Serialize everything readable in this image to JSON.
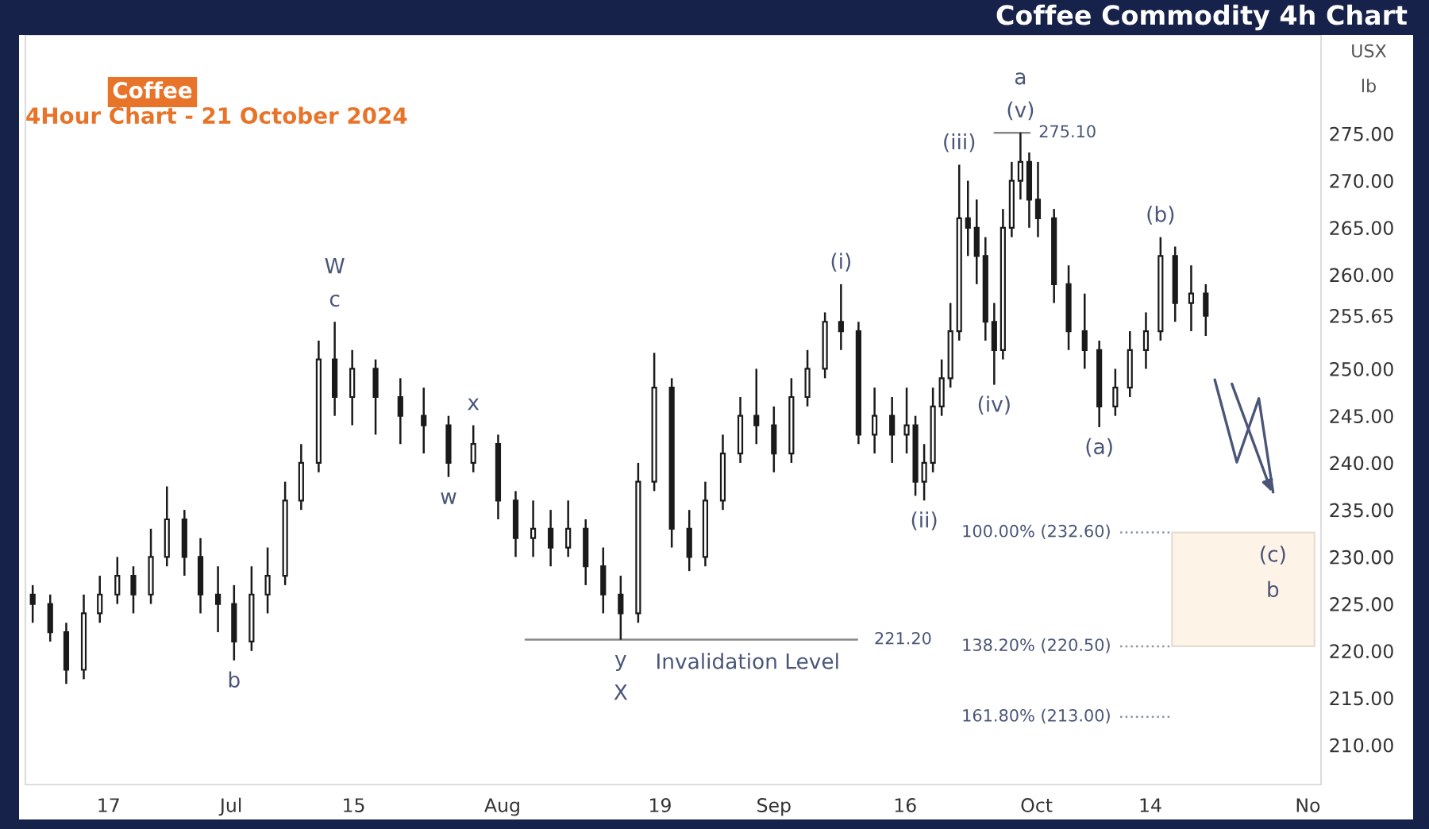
{
  "chart_data": {
    "type": "candlestick",
    "title": "Coffee Commodity 4h Chart",
    "subtitle": "4Hour Chart - 21 October 2024",
    "x": [
      "2024-06-08T08:00",
      "2024-06-10T08:00",
      "2024-06-12T04:00",
      "2024-06-14T04:00",
      "2024-06-16T00:00",
      "2024-06-18T00:00",
      "2024-06-19T20:00",
      "2024-06-21T20:00",
      "2024-06-23T16:00",
      "2024-06-25T16:00",
      "2024-06-27T12:00",
      "2024-06-29T12:00",
      "2024-07-01T08:00",
      "2024-07-03T08:00",
      "2024-07-05T04:00",
      "2024-07-07T04:00",
      "2024-07-09T00:00",
      "2024-07-11T00:00",
      "2024-07-12T20:00",
      "2024-07-14T20:00",
      "2024-07-17T12:00",
      "2024-07-20T08:00",
      "2024-07-23T00:00",
      "2024-07-25T20:00",
      "2024-07-28T16:00",
      "2024-07-31T12:00",
      "2024-08-02T12:00",
      "2024-08-04T12:00",
      "2024-08-06T12:00",
      "2024-08-08T12:00",
      "2024-08-10T12:00",
      "2024-08-12T12:00",
      "2024-08-14T12:00",
      "2024-08-16T12:00",
      "2024-08-18T08:00",
      "2024-08-20T08:00",
      "2024-08-22T08:00",
      "2024-08-24T04:00",
      "2024-08-26T04:00",
      "2024-08-28T04:00",
      "2024-08-30T00:00",
      "2024-09-01T00:00",
      "2024-09-03T00:00",
      "2024-09-04T20:00",
      "2024-09-06T20:00",
      "2024-09-08T16:00",
      "2024-09-10T16:00",
      "2024-09-12T12:00",
      "2024-09-14T12:00",
      "2024-09-16T04:00",
      "2024-09-17T04:00",
      "2024-09-18T04:00",
      "2024-09-19T04:00",
      "2024-09-20T04:00",
      "2024-09-21T04:00",
      "2024-09-22T04:00",
      "2024-09-23T04:00",
      "2024-09-24T04:00",
      "2024-09-25T04:00",
      "2024-09-26T04:00",
      "2024-09-27T04:00",
      "2024-09-28T04:00",
      "2024-09-29T04:00",
      "2024-09-30T04:00",
      "2024-10-01T04:00",
      "2024-10-03T00:00",
      "2024-10-04T16:00",
      "2024-10-06T12:00",
      "2024-10-08T04:00",
      "2024-10-10T00:00",
      "2024-10-11T16:00",
      "2024-10-13T12:00",
      "2024-10-15T04:00",
      "2024-10-16T20:00",
      "2024-10-18T16:00",
      "2024-10-20T08:00"
    ],
    "ohlc": [
      [
        226,
        227,
        223,
        225
      ],
      [
        225,
        226,
        221,
        222
      ],
      [
        222,
        223,
        216.5,
        218
      ],
      [
        218,
        226,
        217,
        224
      ],
      [
        224,
        228,
        223,
        226
      ],
      [
        226,
        230,
        225,
        228
      ],
      [
        228,
        229,
        224,
        226
      ],
      [
        226,
        233,
        225,
        230
      ],
      [
        230,
        237.5,
        229,
        234
      ],
      [
        234,
        235,
        228,
        230
      ],
      [
        230,
        232,
        224,
        226
      ],
      [
        226,
        229,
        222,
        225
      ],
      [
        225,
        227,
        219,
        221
      ],
      [
        221,
        229,
        220,
        226
      ],
      [
        226,
        231,
        224,
        228
      ],
      [
        228,
        238,
        227,
        236
      ],
      [
        236,
        242,
        235,
        240
      ],
      [
        240,
        253,
        239,
        251
      ],
      [
        251,
        255,
        245,
        247
      ],
      [
        247,
        252,
        244,
        250
      ],
      [
        250,
        251,
        243,
        247
      ],
      [
        247,
        249,
        242,
        245
      ],
      [
        245,
        248,
        241,
        244
      ],
      [
        244,
        245,
        238.5,
        240
      ],
      [
        240,
        244,
        239,
        242
      ],
      [
        242,
        243,
        234,
        236
      ],
      [
        236,
        237,
        230,
        232
      ],
      [
        232,
        236,
        230,
        233
      ],
      [
        233,
        235,
        229,
        231
      ],
      [
        231,
        236,
        230,
        233
      ],
      [
        233,
        234,
        227,
        229
      ],
      [
        229,
        231,
        224,
        226
      ],
      [
        226,
        228,
        221.2,
        224
      ],
      [
        224,
        240,
        223,
        238
      ],
      [
        238,
        251.7,
        237,
        248
      ],
      [
        248,
        249,
        231,
        233
      ],
      [
        233,
        235,
        228.5,
        230
      ],
      [
        230,
        238,
        229,
        236
      ],
      [
        236,
        243,
        235,
        241
      ],
      [
        241,
        247,
        240,
        245
      ],
      [
        245,
        250,
        242,
        244
      ],
      [
        244,
        246,
        239,
        241
      ],
      [
        241,
        249,
        240,
        247
      ],
      [
        247,
        252,
        246,
        250
      ],
      [
        250,
        256,
        249,
        255
      ],
      [
        255,
        259,
        252,
        254
      ],
      [
        254,
        255,
        242,
        243
      ],
      [
        243,
        248,
        241,
        245
      ],
      [
        245,
        247,
        240,
        243
      ],
      [
        243,
        248,
        241,
        244
      ],
      [
        244,
        245,
        236.5,
        238
      ],
      [
        238,
        242,
        236,
        240
      ],
      [
        240,
        248,
        239,
        246
      ],
      [
        246,
        251,
        245,
        249
      ],
      [
        249,
        257,
        248,
        254
      ],
      [
        254,
        271.7,
        253,
        266
      ],
      [
        266,
        270,
        262,
        265
      ],
      [
        265,
        268,
        259,
        262
      ],
      [
        262,
        264,
        253,
        255
      ],
      [
        255,
        257,
        248.3,
        252
      ],
      [
        252,
        267,
        251,
        265
      ],
      [
        265,
        272,
        264,
        270
      ],
      [
        270,
        275.1,
        268,
        272
      ],
      [
        272,
        273,
        265,
        268
      ],
      [
        268,
        272,
        264,
        266
      ],
      [
        266,
        267,
        257,
        259
      ],
      [
        259,
        261,
        252,
        254
      ],
      [
        254,
        258,
        250,
        252
      ],
      [
        252,
        253,
        243.8,
        246
      ],
      [
        246,
        250,
        245,
        248
      ],
      [
        248,
        254,
        247,
        252
      ],
      [
        252,
        256,
        250,
        254
      ],
      [
        254,
        264,
        253,
        262
      ],
      [
        262,
        263,
        255,
        257
      ],
      [
        257,
        261,
        254,
        258
      ],
      [
        258,
        259,
        253.5,
        255.65
      ]
    ],
    "color": "#1a1a1a",
    "xlim": [
      "2024-06-07T12:00",
      "2024-11-02T12:00"
    ],
    "xticks": [
      {
        "value": "2024-06-17",
        "label": "17"
      },
      {
        "value": "2024-07-01",
        "label": "Jul"
      },
      {
        "value": "2024-07-15",
        "label": "15"
      },
      {
        "value": "2024-08-01",
        "label": "Aug"
      },
      {
        "value": "2024-08-19",
        "label": "19"
      },
      {
        "value": "2024-09-01",
        "label": "Sep"
      },
      {
        "value": "2024-09-16",
        "label": "16"
      },
      {
        "value": "2024-10-01",
        "label": "Oct"
      },
      {
        "value": "2024-10-14",
        "label": "14"
      },
      {
        "value": "2024-11-01",
        "label": "No"
      }
    ],
    "ylim": [
      205.8,
      285.5
    ],
    "yticks": [
      {
        "value": 210,
        "label": "210.00"
      },
      {
        "value": 215,
        "label": "215.00"
      },
      {
        "value": 220,
        "label": "220.00"
      },
      {
        "value": 225,
        "label": "225.00"
      },
      {
        "value": 230,
        "label": "230.00"
      },
      {
        "value": 235,
        "label": "235.00"
      },
      {
        "value": 240,
        "label": "240.00"
      },
      {
        "value": 245,
        "label": "245.00"
      },
      {
        "value": 250,
        "label": "250.00"
      },
      {
        "value": 255.65,
        "label": "255.65"
      },
      {
        "value": 260,
        "label": "260.00"
      },
      {
        "value": 265,
        "label": "265.00"
      },
      {
        "value": 270,
        "label": "270.00"
      },
      {
        "value": 275,
        "label": "275.00"
      }
    ],
    "ref_lines": [
      {
        "axis": "y",
        "value": 275.1,
        "label": "275.10",
        "color": "#888888",
        "line_style": "solid"
      },
      {
        "axis": "y",
        "value": 221.2,
        "label": "221.20",
        "color": "#888888",
        "line_style": "solid"
      },
      {
        "axis": "y",
        "value": 232.6,
        "label": "100.00% (232.60)",
        "color": "#8a93a8",
        "line_style": "dotted"
      },
      {
        "axis": "y",
        "value": 220.5,
        "label": "138.20% (220.50)",
        "color": "#8a93a8",
        "line_style": "dotted"
      },
      {
        "axis": "y",
        "value": 213.0,
        "label": "161.80% (213.00)",
        "color": "#8a93a8",
        "line_style": "dotted"
      }
    ],
    "bands": [
      {
        "axis": "y",
        "from": 220.5,
        "to": 232.6,
        "color": "#fdf3e7"
      }
    ],
    "annotations": [
      "Coffee",
      "USX",
      "lb",
      {
        "text": "c",
        "x": "2024-07-12T20:00",
        "y": 255
      },
      {
        "text": "W",
        "x": "2024-07-12T20:00",
        "y": 255
      },
      {
        "text": "x",
        "x": "2024-07-28T16:00",
        "y": 244
      },
      {
        "text": "w",
        "x": "2024-07-25T20:00",
        "y": 238.5
      },
      {
        "text": "b",
        "x": "2024-07-01T08:00",
        "y": 219
      },
      {
        "text": "y",
        "x": "2024-08-14T12:00",
        "y": 221.2
      },
      {
        "text": "X",
        "x": "2024-08-14T12:00",
        "y": 221.2
      },
      {
        "text": "Invalidation Level",
        "x": "2024-08-29",
        "y": 221.2
      },
      {
        "text": "(i)",
        "x": "2024-09-08T16:00",
        "y": 259
      },
      {
        "text": "(ii)",
        "x": "2024-09-18T04:00",
        "y": 236
      },
      {
        "text": "(iii)",
        "x": "2024-09-22T04:00",
        "y": 271.7
      },
      {
        "text": "(iv)",
        "x": "2024-09-26T04:00",
        "y": 248.3
      },
      {
        "text": "(v)",
        "x": "2024-09-29T04:00",
        "y": 275.1
      },
      {
        "text": "a",
        "x": "2024-09-29T04:00",
        "y": 275.1
      },
      {
        "text": "(a)",
        "x": "2024-10-08T04:00",
        "y": 243.8
      },
      {
        "text": "(b)",
        "x": "2024-10-15T04:00",
        "y": 264
      },
      {
        "text": "(c)",
        "x": "2024-10-28",
        "y": 232.6
      },
      {
        "text": "b",
        "x": "2024-10-28",
        "y": 232.6
      }
    ],
    "grid": false,
    "legend": false
  }
}
